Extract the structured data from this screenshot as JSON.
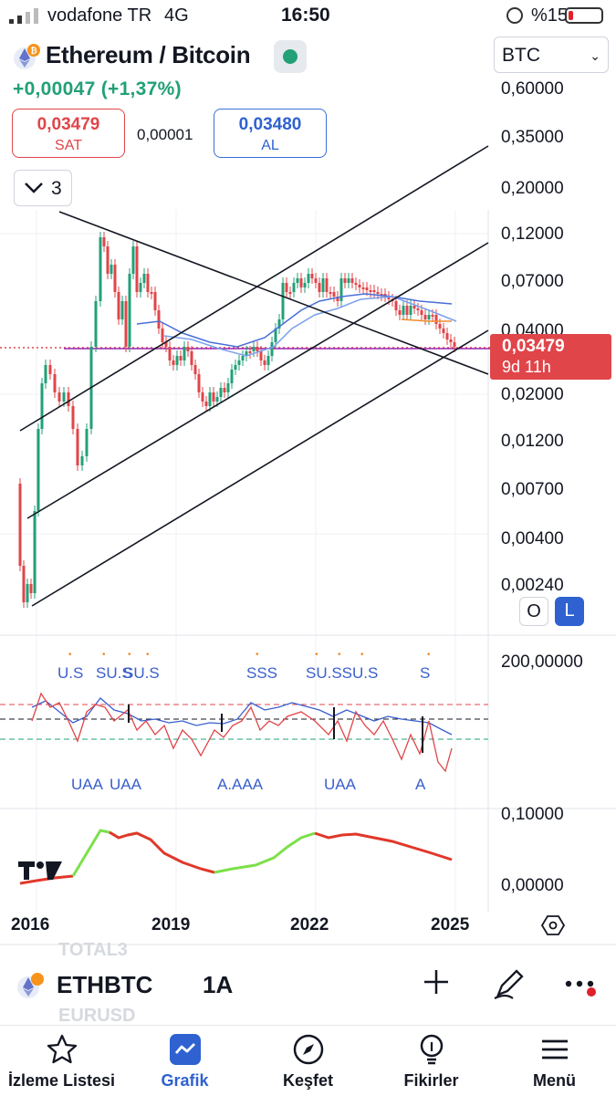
{
  "status_bar": {
    "carrier": "vodafone TR",
    "network": "4G",
    "time": "16:50",
    "battery": "%15",
    "battery_fraction": 0.15
  },
  "header": {
    "title": "Ethereum / Bitcoin",
    "change": "+0,00047 (+1,37%)",
    "currency": "BTC",
    "sell_price": "0,03479",
    "sell_label": "SAT",
    "buy_price": "0,03480",
    "buy_label": "AL",
    "spread": "0,00001",
    "indicator_count": "3"
  },
  "price_axis": {
    "labels": [
      "0,60000",
      "0,35000",
      "0,20000",
      "0,12000",
      "0,07000",
      "0,04000",
      "0,02000",
      "0,01200",
      "0,00700",
      "0,00400",
      "0,00240"
    ],
    "current_price": "0,03479",
    "countdown": "9d 11h",
    "o_button": "O",
    "l_button": "L"
  },
  "oscillator": {
    "axis_label": "200,00000",
    "top_labels": [
      "U.S",
      "SU.S",
      "SU.S",
      "SSS",
      "SU.SSU.S",
      "S"
    ],
    "bottom_labels": [
      "UAA",
      "UAA",
      "A.AAA",
      "UAA",
      "A"
    ]
  },
  "trend_pane": {
    "axis_top": "0,10000",
    "axis_bottom": "0,00000"
  },
  "time_axis": [
    "2016",
    "2019",
    "2022",
    "2025"
  ],
  "symbol_bar": {
    "ghost_top": "TOTAL3",
    "ghost_bottom": "EURUSD",
    "symbol": "ETHBTC",
    "timeframe": "1A"
  },
  "nav": {
    "items": [
      {
        "label": "İzleme Listesi",
        "icon": "star-icon"
      },
      {
        "label": "Grafik",
        "icon": "chart-icon"
      },
      {
        "label": "Keşfet",
        "icon": "compass-icon"
      },
      {
        "label": "Fikirler",
        "icon": "lightbulb-icon"
      },
      {
        "label": "Menü",
        "icon": "menu-icon"
      }
    ],
    "active": "Grafik"
  },
  "colors": {
    "up": "#22a078",
    "down": "#e0454a",
    "accent": "#2f62d0"
  }
}
